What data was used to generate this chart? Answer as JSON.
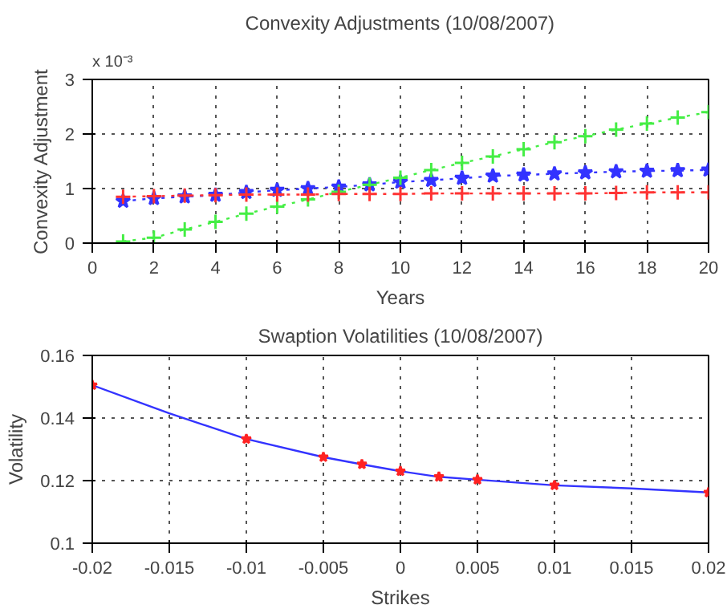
{
  "chart_data": [
    {
      "type": "line",
      "title": "Convexity Adjustments (10/08/2007)",
      "xlabel": "Years",
      "ylabel": "Convexity Adjustment",
      "annotations": [
        "x 10⁻³"
      ],
      "x": [
        1,
        2,
        3,
        4,
        5,
        6,
        7,
        8,
        9,
        10,
        11,
        12,
        13,
        14,
        15,
        16,
        17,
        18,
        19,
        20
      ],
      "xlim": [
        0,
        20
      ],
      "xticks": [
        0,
        2,
        4,
        6,
        8,
        10,
        12,
        14,
        16,
        18,
        20
      ],
      "ylim": [
        0,
        3
      ],
      "yticks": [
        0,
        1,
        2,
        3
      ],
      "grid": true,
      "line_style": "dotted",
      "marker": "cross",
      "series": [
        {
          "color": "#3333ff",
          "marker": "star",
          "values": [
            0.77,
            0.82,
            0.85,
            0.88,
            0.93,
            0.97,
            1.0,
            1.03,
            1.07,
            1.12,
            1.15,
            1.19,
            1.23,
            1.25,
            1.27,
            1.29,
            1.31,
            1.32,
            1.33,
            1.34
          ]
        },
        {
          "color": "#44ee44",
          "values": [
            0.03,
            0.1,
            0.25,
            0.39,
            0.54,
            0.67,
            0.8,
            0.94,
            1.07,
            1.2,
            1.34,
            1.47,
            1.59,
            1.72,
            1.85,
            1.96,
            2.08,
            2.19,
            2.3,
            2.4
          ]
        },
        {
          "color": "#ff3333",
          "values": [
            0.85,
            0.86,
            0.87,
            0.88,
            0.89,
            0.89,
            0.89,
            0.9,
            0.9,
            0.9,
            0.91,
            0.91,
            0.91,
            0.91,
            0.91,
            0.91,
            0.92,
            0.93,
            0.93,
            0.93
          ]
        }
      ]
    },
    {
      "type": "line",
      "title": "Swaption Volatilities (10/08/2007)",
      "xlabel": "Strikes",
      "ylabel": "Volatility",
      "xlim": [
        -0.02,
        0.02
      ],
      "xticks": [
        -0.02,
        -0.015,
        -0.01,
        -0.005,
        0,
        0.005,
        0.01,
        0.015,
        0.02
      ],
      "ylim": [
        0.1,
        0.16
      ],
      "yticks": [
        0.1,
        0.12,
        0.14,
        0.16
      ],
      "grid": true,
      "series": [
        {
          "type": "line",
          "color": "#3333ff",
          "marker": "none",
          "line_style": "solid",
          "x": [
            -0.02,
            -0.015,
            -0.01,
            -0.005,
            -0.0025,
            0,
            0.0025,
            0.005,
            0.01,
            0.015,
            0.02
          ],
          "values": [
            0.1505,
            0.1415,
            0.1333,
            0.1275,
            0.1252,
            0.123,
            0.1212,
            0.1203,
            0.1185,
            0.1175,
            0.1162
          ]
        },
        {
          "type": "scatter",
          "color": "#ff2222",
          "marker": "star",
          "x": [
            -0.02,
            -0.01,
            -0.005,
            -0.0025,
            0,
            0.0025,
            0.005,
            0.01,
            0.02
          ],
          "values": [
            0.1505,
            0.1333,
            0.1275,
            0.1252,
            0.123,
            0.1212,
            0.1203,
            0.1185,
            0.1162
          ]
        }
      ]
    }
  ]
}
